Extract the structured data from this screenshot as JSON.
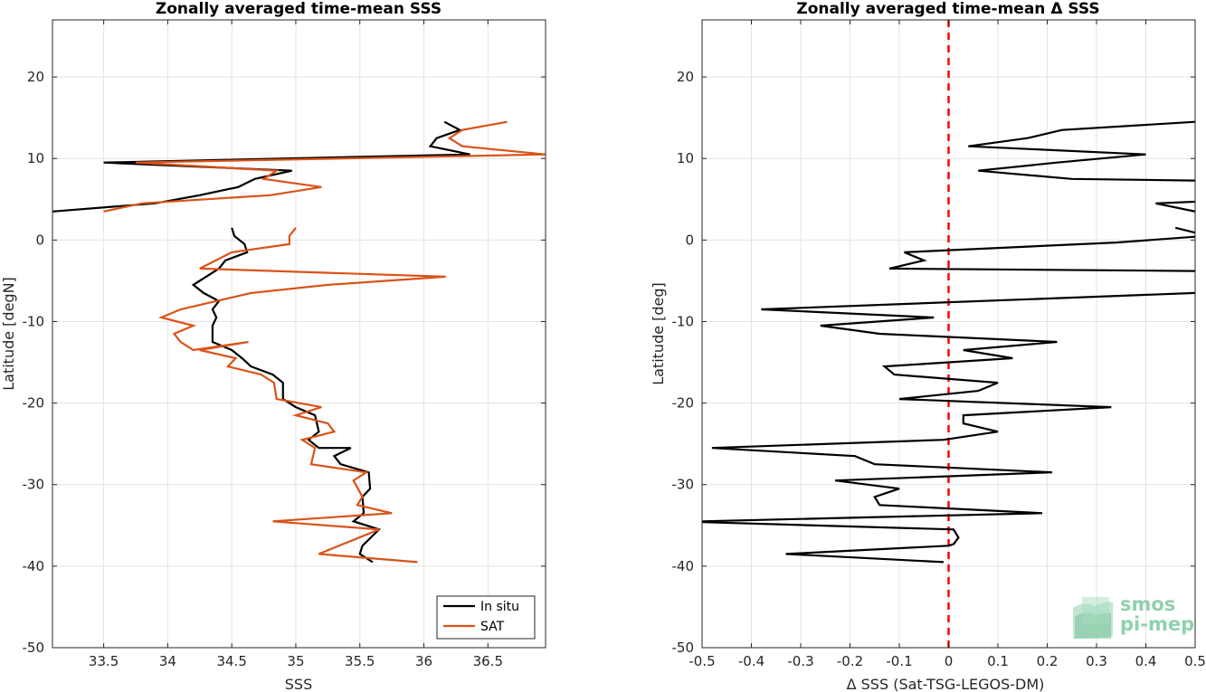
{
  "chart_data": [
    {
      "type": "line",
      "title": "Zonally averaged time-mean SSS",
      "xlabel": "SSS",
      "ylabel": "Latitude [degN]",
      "xlim": [
        33.1,
        36.95
      ],
      "ylim": [
        -50,
        27
      ],
      "xticks": [
        "33.5",
        "34",
        "34.5",
        "35",
        "35.5",
        "36",
        "36.5"
      ],
      "yticks": [
        "20",
        "10",
        "0",
        "-10",
        "-20",
        "-30",
        "-40",
        "-50"
      ],
      "grid": true,
      "legend": "bottom-right",
      "series": [
        {
          "name": "In situ",
          "color": "#000000",
          "segments": [
            {
              "x": [
                36.16,
                36.28,
                36.1,
                36.05,
                36.36,
                33.5,
                34.97,
                34.68,
                34.55,
                34.25,
                33.9,
                33.1
              ],
              "y": [
                14.5,
                13.5,
                12.5,
                11.5,
                10.5,
                9.5,
                8.5,
                7.5,
                6.5,
                5.5,
                4.5,
                3.5
              ]
            },
            {
              "x": [
                34.5,
                34.52,
                34.6,
                34.62,
                34.45,
                34.4,
                34.2,
                34.28,
                34.4,
                34.35,
                34.38,
                34.35,
                34.35,
                34.5,
                34.58,
                34.65,
                34.82,
                34.9,
                34.9,
                35.0,
                35.15,
                35.18,
                35.1,
                35.18,
                35.43,
                35.3,
                35.35,
                35.57,
                35.58,
                35.52,
                35.53,
                35.45,
                35.65,
                35.52,
                35.5,
                35.6
              ],
              "y": [
                1.5,
                0.5,
                -0.5,
                -1.5,
                -2.5,
                -3.5,
                -5.5,
                -6.5,
                -7.5,
                -8.5,
                -9.5,
                -10.5,
                -12.5,
                -13.5,
                -14.5,
                -15.5,
                -16.5,
                -17.5,
                -19.5,
                -20.5,
                -21.5,
                -23.5,
                -24.5,
                -25.5,
                -25.5,
                -26.5,
                -27.5,
                -28.5,
                -30.5,
                -31.5,
                -33.5,
                -34.5,
                -35.5,
                -37.5,
                -38.5,
                -39.5
              ]
            }
          ]
        },
        {
          "name": "SAT",
          "color": "#d95319",
          "segments": [
            {
              "x": [
                36.65,
                36.3,
                36.2,
                36.3,
                36.95,
                33.75,
                34.85,
                34.75,
                35.2,
                34.8,
                33.8,
                33.5
              ],
              "y": [
                14.5,
                13.5,
                12.5,
                11.5,
                10.5,
                9.5,
                8.5,
                7.5,
                6.5,
                5.5,
                4.5,
                3.5
              ]
            },
            {
              "x": [
                35.0,
                34.95,
                34.95,
                34.5,
                34.25,
                36.17,
                35.25,
                34.65,
                34.1,
                33.95,
                34.2,
                34.05,
                34.1,
                34.2,
                34.63,
                34.25,
                34.53,
                34.47,
                34.73,
                34.83,
                34.85,
                35.2,
                35.0,
                35.25,
                35.3,
                35.05,
                35.15,
                35.12,
                35.55,
                35.45,
                35.52,
                35.48,
                35.75,
                34.82,
                35.65,
                35.18,
                35.95
              ],
              "y": [
                1.5,
                0.5,
                -0.5,
                -1.5,
                -3.5,
                -4.5,
                -5.5,
                -6.5,
                -8.5,
                -9.5,
                -10.5,
                -11.5,
                -12.5,
                -13.5,
                -12.5,
                -13.5,
                -14.5,
                -15.5,
                -16.5,
                -17.5,
                -19.5,
                -20.5,
                -21.5,
                -22.5,
                -23.5,
                -24.5,
                -25.5,
                -27.5,
                -28.5,
                -29.5,
                -31.5,
                -32.5,
                -33.5,
                -34.5,
                -35.5,
                -38.5,
                -39.5
              ]
            }
          ]
        }
      ]
    },
    {
      "type": "line",
      "title": "Zonally averaged time-mean Δ SSS",
      "xlabel": "Δ SSS (Sat-TSG-LEGOS-DM)",
      "ylabel": "Latitude [deg]",
      "xlim": [
        -0.5,
        0.5
      ],
      "ylim": [
        -50,
        27
      ],
      "xticks": [
        "-0.5",
        "-0.4",
        "-0.3",
        "-0.2",
        "-0.1",
        "0",
        "0.1",
        "0.2",
        "0.3",
        "0.4",
        "0.5"
      ],
      "yticks": [
        "20",
        "10",
        "0",
        "-10",
        "-20",
        "-30",
        "-40",
        "-50"
      ],
      "grid": true,
      "reference_line": {
        "x": 0,
        "color": "#ff0000",
        "style": "dashed"
      },
      "series": [
        {
          "name": "",
          "color": "#000000",
          "segments": [
            {
              "x": [
                0.5,
                0.23,
                0.16,
                0.04,
                0.4,
                0.22,
                0.06,
                0.25,
                0.5
              ],
              "y": [
                14.5,
                13.5,
                12.5,
                11.5,
                10.5,
                9.5,
                8.5,
                7.5,
                7.3
              ]
            },
            {
              "x": [
                0.5,
                0.42,
                0.5
              ],
              "y": [
                4.7,
                4.5,
                3.5
              ]
            },
            {
              "x": [
                0.46,
                0.5
              ],
              "y": [
                1.5,
                0.9
              ]
            },
            {
              "x": [
                0.5,
                0.34,
                -0.09,
                -0.05,
                -0.12,
                0.5
              ],
              "y": [
                0.4,
                -0.3,
                -1.5,
                -2.5,
                -3.5,
                -3.8
              ]
            },
            {
              "x": [
                0.5,
                -0.38,
                -0.03,
                -0.26,
                -0.14,
                0.22,
                0.03,
                0.13,
                -0.13,
                -0.11,
                0.1,
                0.06,
                -0.1,
                0.33,
                0.03,
                0.03,
                0.1,
                -0.01,
                -0.48,
                -0.19,
                -0.15,
                0.21,
                -0.23,
                -0.1,
                -0.15,
                -0.14,
                0.19,
                -0.5
              ],
              "y": [
                -6.5,
                -8.5,
                -9.5,
                -10.5,
                -11.5,
                -12.5,
                -13.5,
                -14.5,
                -15.5,
                -16.5,
                -17.5,
                -18.5,
                -19.5,
                -20.5,
                -21.5,
                -22.5,
                -23.5,
                -24.5,
                -25.5,
                -26.5,
                -27.5,
                -28.5,
                -29.5,
                -30.5,
                -31.5,
                -32.5,
                -33.5,
                -34.5
              ]
            },
            {
              "x": [
                -0.5,
                0.01,
                0.02,
                0.01,
                0.0,
                -0.33,
                -0.01
              ],
              "y": [
                -34.6,
                -35.5,
                -36.5,
                -37.3,
                -37.5,
                -38.5,
                -39.5
              ]
            }
          ]
        }
      ]
    }
  ],
  "legend": {
    "items": [
      "In situ",
      "SAT"
    ]
  },
  "logo": {
    "line1": "smos",
    "line2": "pi-mep"
  }
}
